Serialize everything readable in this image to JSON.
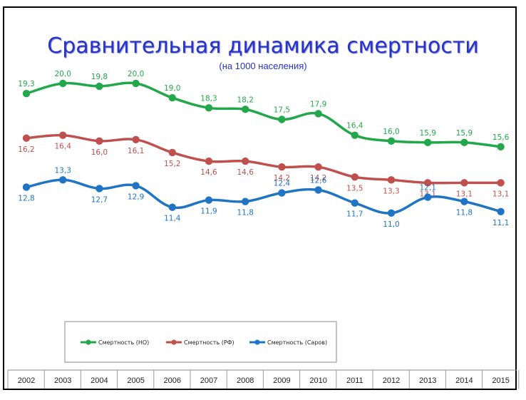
{
  "slide": {
    "title": "Сравнительная динамика смертности",
    "subtitle": "(на 1000 населения)"
  },
  "chart_data": {
    "type": "line",
    "categories": [
      "2002",
      "2003",
      "2004",
      "2005",
      "2006",
      "2007",
      "2008",
      "2009",
      "2010",
      "2011",
      "2012",
      "2013",
      "2014",
      "2015"
    ],
    "series": [
      {
        "name": "Смертность (НО)",
        "color": "#22a84a",
        "values": [
          19.3,
          20.0,
          19.8,
          20.0,
          19.0,
          18.3,
          18.2,
          17.5,
          17.9,
          16.4,
          16.0,
          15.9,
          15.9,
          15.6
        ]
      },
      {
        "name": "Смертность (РФ)",
        "color": "#c0504d",
        "values": [
          16.2,
          16.4,
          16.0,
          16.1,
          15.2,
          14.6,
          14.6,
          14.2,
          14.2,
          13.5,
          13.3,
          13.1,
          13.1,
          13.1
        ]
      },
      {
        "name": "Смертность (Саров)",
        "color": "#1f75c4",
        "values": [
          12.8,
          13.3,
          12.7,
          12.9,
          11.4,
          11.9,
          11.8,
          12.4,
          12.6,
          11.7,
          11.0,
          12.1,
          11.8,
          11.1
        ]
      }
    ],
    "labels": [
      [
        "19,3",
        "20,0",
        "19,8",
        "20,0",
        "19,0",
        "18,3",
        "18,2",
        "17,5",
        "17,9",
        "16,4",
        "16,0",
        "15,9",
        "15,9",
        "15,6"
      ],
      [
        "16,2",
        "16,4",
        "16,0",
        "16,1",
        "15,2",
        "14,6",
        "14,6",
        "14,2",
        "14,2",
        "13,5",
        "13,3",
        "13,1",
        "13,1",
        "13,1"
      ],
      [
        "12,8",
        "13,3",
        "12,7",
        "12,9",
        "11,4",
        "11,9",
        "11,8",
        "12,4",
        "12,6",
        "11,7",
        "11,0",
        "12,1",
        "11,8",
        "11,1"
      ]
    ],
    "legend_position": "bottom-left",
    "grid": false
  }
}
